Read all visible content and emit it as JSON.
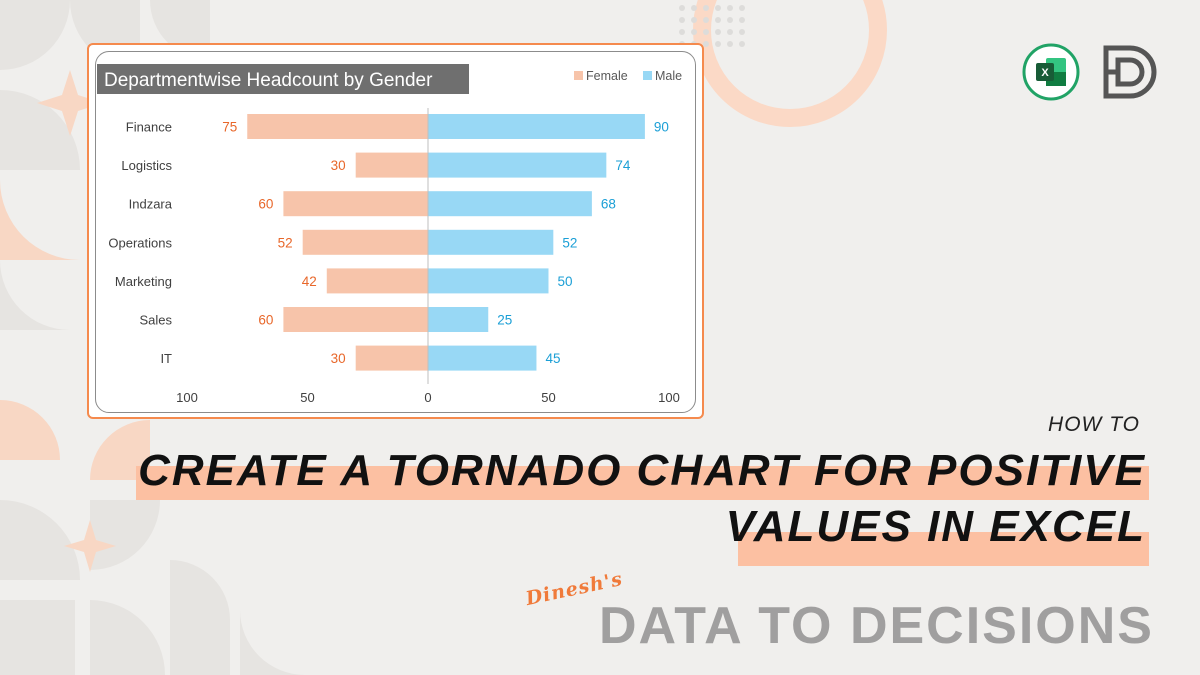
{
  "chart_data": {
    "type": "bar",
    "orientation": "horizontal-tornado",
    "title": "Departmentwise Headcount by Gender",
    "categories": [
      "Finance",
      "Logistics",
      "Indzara",
      "Operations",
      "Marketing",
      "Sales",
      "IT"
    ],
    "series": [
      {
        "name": "Female",
        "values": [
          75,
          30,
          60,
          52,
          42,
          60,
          30
        ],
        "color": "#f7c4aa",
        "label_color": "#e8672a"
      },
      {
        "name": "Male",
        "values": [
          90,
          74,
          68,
          52,
          50,
          25,
          45
        ],
        "color": "#98d8f5",
        "label_color": "#1b9fd6"
      }
    ],
    "xticks": [
      "100",
      "50",
      "0",
      "50",
      "100"
    ],
    "xlim": [
      -100,
      100
    ],
    "legend": "top-right",
    "grid": false
  },
  "page": {
    "how_to": "HOW TO",
    "title_line1": "CREATE A TORNADO CHART FOR POSITIVE",
    "title_line2": "VALUES IN EXCEL",
    "brand_script": "Dinesh's",
    "brand": "DATA TO DECISIONS"
  },
  "logos": {
    "excel_icon": "excel-icon",
    "excel_letter": "X",
    "brand_icon": "dd-monogram-icon"
  },
  "colors": {
    "accent": "#f58a4d",
    "highlight": "#fcc0a2",
    "background": "#f0efed"
  }
}
